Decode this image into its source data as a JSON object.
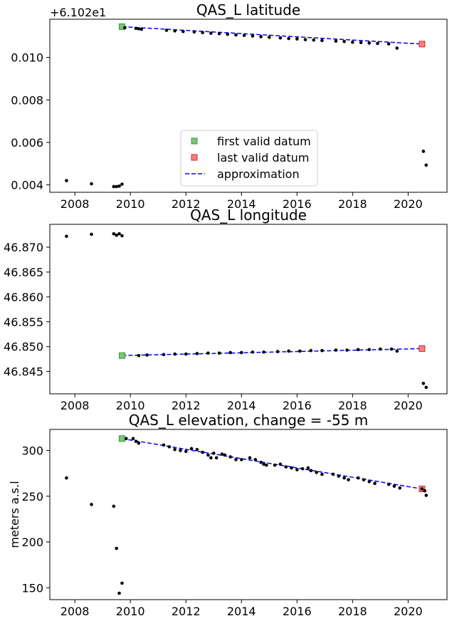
{
  "chart_data": [
    {
      "type": "scatter",
      "title": "QAS_L latitude",
      "offset_text": "+6.102e1",
      "xlabel": "",
      "ylabel": "",
      "xlim": [
        2007.1,
        2021.4
      ],
      "ylim": [
        0.00365,
        0.0118
      ],
      "x_ticks": [
        2008,
        2010,
        2012,
        2014,
        2016,
        2018,
        2020
      ],
      "x_tick_labels": [
        "2008",
        "2010",
        "2012",
        "2014",
        "2016",
        "2018",
        "2020"
      ],
      "y_ticks": [
        0.004,
        0.006,
        0.008,
        0.01
      ],
      "y_tick_labels": [
        "0.004",
        "0.006",
        "0.008",
        "0.010"
      ],
      "legend": {
        "placement": "lower-center",
        "entries": [
          {
            "label": "first valid datum",
            "color": "#7fbf7f",
            "marker": "square"
          },
          {
            "label": "last valid datum",
            "color": "#ff7f7f",
            "marker": "square"
          },
          {
            "label": "approximation",
            "color": "#0000ff",
            "marker": "dashed-line"
          }
        ]
      },
      "series": [
        {
          "kind": "points",
          "color": "#000000",
          "x": [
            2007.7,
            2008.6,
            2009.4,
            2009.5,
            2009.6,
            2009.7,
            2009.8,
            2010.2,
            2010.3,
            2010.4,
            2011.3,
            2011.6,
            2011.9,
            2012.3,
            2012.6,
            2012.9,
            2013.2,
            2013.5,
            2013.8,
            2014.1,
            2014.4,
            2014.7,
            2015.0,
            2015.4,
            2015.7,
            2016.0,
            2016.3,
            2016.6,
            2016.9,
            2017.4,
            2017.7,
            2018.0,
            2018.3,
            2018.6,
            2018.9,
            2019.3,
            2019.6,
            2020.55,
            2020.65
          ],
          "y": [
            0.0042,
            0.00405,
            0.00392,
            0.00392,
            0.00394,
            0.00403,
            0.0114,
            0.01137,
            0.01135,
            0.01133,
            0.01128,
            0.01125,
            0.01122,
            0.0112,
            0.01117,
            0.01114,
            0.01112,
            0.01109,
            0.01106,
            0.01104,
            0.01101,
            0.01098,
            0.01095,
            0.01092,
            0.01089,
            0.01087,
            0.01084,
            0.01082,
            0.0108,
            0.01077,
            0.01075,
            0.01072,
            0.0107,
            0.01068,
            0.01066,
            0.01064,
            0.01044,
            0.00558,
            0.00493
          ]
        },
        {
          "kind": "first",
          "x": [
            2009.7
          ],
          "y": [
            0.01145
          ]
        },
        {
          "kind": "last",
          "x": [
            2020.5
          ],
          "y": [
            0.01063
          ]
        },
        {
          "kind": "approx",
          "x": [
            2009.7,
            2020.5
          ],
          "y": [
            0.01145,
            0.01063
          ]
        }
      ]
    },
    {
      "type": "scatter",
      "title": "QAS_L longitude",
      "xlabel": "",
      "ylabel": "",
      "xlim": [
        2007.1,
        2021.4
      ],
      "ylim": [
        46.8405,
        46.8746
      ],
      "x_ticks": [
        2008,
        2010,
        2012,
        2014,
        2016,
        2018,
        2020
      ],
      "x_tick_labels": [
        "2008",
        "2010",
        "2012",
        "2014",
        "2016",
        "2018",
        "2020"
      ],
      "y_ticks": [
        46.845,
        46.85,
        46.855,
        46.86,
        46.865,
        46.87
      ],
      "y_tick_labels": [
        "46.845",
        "46.850",
        "46.855",
        "46.860",
        "46.865",
        "46.870"
      ],
      "series": [
        {
          "kind": "points",
          "color": "#000000",
          "x": [
            2007.7,
            2008.6,
            2009.4,
            2009.5,
            2009.6,
            2009.7,
            2010.3,
            2010.6,
            2011.2,
            2011.6,
            2012.0,
            2012.4,
            2012.8,
            2013.2,
            2013.6,
            2014.0,
            2014.4,
            2014.8,
            2015.3,
            2015.7,
            2016.1,
            2016.5,
            2016.9,
            2017.4,
            2017.8,
            2018.2,
            2018.6,
            2019.0,
            2019.4,
            2019.6,
            2020.55,
            2020.65
          ],
          "y": [
            46.8722,
            46.8726,
            46.8727,
            46.8724,
            46.8727,
            46.8723,
            46.8482,
            46.8483,
            46.8484,
            46.8485,
            46.8485,
            46.8486,
            46.8487,
            46.8487,
            46.8488,
            46.8488,
            46.8489,
            46.8489,
            46.849,
            46.8491,
            46.8491,
            46.8492,
            46.8492,
            46.8493,
            46.8493,
            46.8494,
            46.8494,
            46.8495,
            46.8495,
            46.8491,
            46.8426,
            46.8418
          ]
        },
        {
          "kind": "first",
          "x": [
            2009.7
          ],
          "y": [
            46.8482
          ]
        },
        {
          "kind": "last",
          "x": [
            2020.5
          ],
          "y": [
            46.8496
          ]
        },
        {
          "kind": "approx",
          "x": [
            2009.7,
            2020.5
          ],
          "y": [
            46.8482,
            46.8496
          ]
        }
      ]
    },
    {
      "type": "scatter",
      "title": "QAS_L elevation, change = -55 m",
      "xlabel": "",
      "ylabel": "meters a.s.l",
      "xlim": [
        2007.1,
        2021.4
      ],
      "ylim": [
        137,
        323
      ],
      "x_ticks": [
        2008,
        2010,
        2012,
        2014,
        2016,
        2018,
        2020
      ],
      "x_tick_labels": [
        "2008",
        "2010",
        "2012",
        "2014",
        "2016",
        "2018",
        "2020"
      ],
      "y_ticks": [
        150,
        200,
        250,
        300
      ],
      "y_tick_labels": [
        "150",
        "200",
        "250",
        "300"
      ],
      "series": [
        {
          "kind": "points",
          "color": "#000000",
          "x": [
            2007.7,
            2008.6,
            2009.4,
            2009.5,
            2009.6,
            2009.7,
            2009.85,
            2010.1,
            2010.2,
            2010.3,
            2011.2,
            2011.4,
            2011.6,
            2011.8,
            2012.0,
            2012.2,
            2012.4,
            2012.6,
            2012.8,
            2012.9,
            2013.0,
            2013.1,
            2013.3,
            2013.4,
            2013.6,
            2013.8,
            2014.0,
            2014.3,
            2014.5,
            2014.7,
            2014.8,
            2014.9,
            2015.2,
            2015.4,
            2015.6,
            2015.8,
            2016.0,
            2016.2,
            2016.4,
            2016.5,
            2016.7,
            2016.9,
            2017.3,
            2017.5,
            2017.7,
            2017.85,
            2018.2,
            2018.4,
            2018.6,
            2018.8,
            2019.3,
            2019.5,
            2019.7,
            2020.5,
            2020.6,
            2020.65
          ],
          "y": [
            270,
            241,
            239,
            193,
            144,
            155,
            313,
            313,
            310,
            308,
            306,
            304,
            301,
            300,
            299,
            302,
            301,
            298,
            295,
            292,
            297,
            292,
            296,
            295,
            293,
            290,
            290,
            292,
            290,
            287,
            285,
            284,
            284,
            285,
            282,
            281,
            279,
            280,
            281,
            278,
            276,
            274,
            274,
            272,
            270,
            268,
            270,
            268,
            266,
            264,
            263,
            261,
            259,
            258,
            256,
            251
          ]
        },
        {
          "kind": "first",
          "x": [
            2009.7
          ],
          "y": [
            313
          ]
        },
        {
          "kind": "last",
          "x": [
            2020.5
          ],
          "y": [
            258
          ]
        },
        {
          "kind": "approx",
          "x": [
            2009.7,
            2020.5
          ],
          "y": [
            313,
            258
          ]
        }
      ]
    }
  ]
}
